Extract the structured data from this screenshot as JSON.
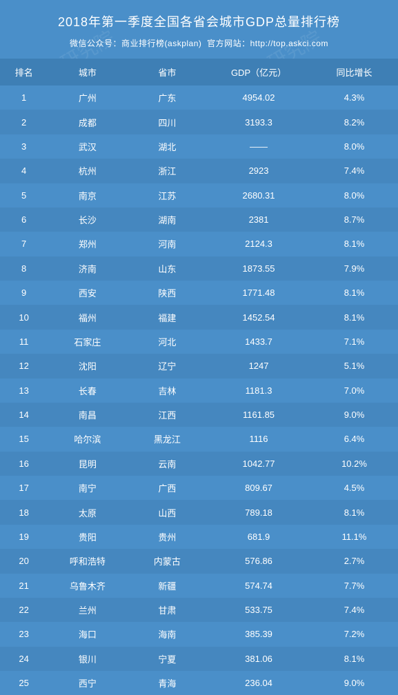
{
  "title": "2018年第一季度全国各省会城市GDP总量排行榜",
  "subtitle_prefix": "微信公众号：",
  "subtitle_account": "商业排行榜(askplan)",
  "subtitle_site_label": "官方网站：",
  "subtitle_site_url": "http://top.askci.com",
  "watermark_text": "中商产业研究院",
  "colors": {
    "background": "#4a8fc9",
    "row_even": "#4587bf",
    "header_row": "#3e7fb5",
    "text": "#ffffff"
  },
  "columns": [
    "排名",
    "城市",
    "省市",
    "GDP（亿元）",
    "同比增长"
  ],
  "column_widths_pct": [
    12,
    20,
    20,
    26,
    22
  ],
  "font_size_title": 18,
  "font_size_subtitle": 12,
  "font_size_body": 13,
  "rows": [
    {
      "rank": "1",
      "city": "广州",
      "province": "广东",
      "gdp": "4954.02",
      "growth": "4.3%"
    },
    {
      "rank": "2",
      "city": "成都",
      "province": "四川",
      "gdp": "3193.3",
      "growth": "8.2%"
    },
    {
      "rank": "3",
      "city": "武汉",
      "province": "湖北",
      "gdp": "——",
      "growth": "8.0%"
    },
    {
      "rank": "4",
      "city": "杭州",
      "province": "浙江",
      "gdp": "2923",
      "growth": "7.4%"
    },
    {
      "rank": "5",
      "city": "南京",
      "province": "江苏",
      "gdp": "2680.31",
      "growth": "8.0%"
    },
    {
      "rank": "6",
      "city": "长沙",
      "province": "湖南",
      "gdp": "2381",
      "growth": "8.7%"
    },
    {
      "rank": "7",
      "city": "郑州",
      "province": "河南",
      "gdp": "2124.3",
      "growth": "8.1%"
    },
    {
      "rank": "8",
      "city": "济南",
      "province": "山东",
      "gdp": "1873.55",
      "growth": "7.9%"
    },
    {
      "rank": "9",
      "city": "西安",
      "province": "陕西",
      "gdp": "1771.48",
      "growth": "8.1%"
    },
    {
      "rank": "10",
      "city": "福州",
      "province": "福建",
      "gdp": "1452.54",
      "growth": "8.1%"
    },
    {
      "rank": "11",
      "city": "石家庄",
      "province": "河北",
      "gdp": "1433.7",
      "growth": "7.1%"
    },
    {
      "rank": "12",
      "city": "沈阳",
      "province": "辽宁",
      "gdp": "1247",
      "growth": "5.1%"
    },
    {
      "rank": "13",
      "city": "长春",
      "province": "吉林",
      "gdp": "1181.3",
      "growth": "7.0%"
    },
    {
      "rank": "14",
      "city": "南昌",
      "province": "江西",
      "gdp": "1161.85",
      "growth": "9.0%"
    },
    {
      "rank": "15",
      "city": "哈尔滨",
      "province": "黑龙江",
      "gdp": "1116",
      "growth": "6.4%"
    },
    {
      "rank": "16",
      "city": "昆明",
      "province": "云南",
      "gdp": "1042.77",
      "growth": "10.2%"
    },
    {
      "rank": "17",
      "city": "南宁",
      "province": "广西",
      "gdp": "809.67",
      "growth": "4.5%"
    },
    {
      "rank": "18",
      "city": "太原",
      "province": "山西",
      "gdp": "789.18",
      "growth": "8.1%"
    },
    {
      "rank": "19",
      "city": "贵阳",
      "province": "贵州",
      "gdp": "681.9",
      "growth": "11.1%"
    },
    {
      "rank": "20",
      "city": "呼和浩特",
      "province": "内蒙古",
      "gdp": "576.86",
      "growth": "2.7%"
    },
    {
      "rank": "21",
      "city": "乌鲁木齐",
      "province": "新疆",
      "gdp": "574.74",
      "growth": "7.7%"
    },
    {
      "rank": "22",
      "city": "兰州",
      "province": "甘肃",
      "gdp": "533.75",
      "growth": "7.4%"
    },
    {
      "rank": "23",
      "city": "海口",
      "province": "海南",
      "gdp": "385.39",
      "growth": "7.2%"
    },
    {
      "rank": "24",
      "city": "银川",
      "province": "宁夏",
      "gdp": "381.06",
      "growth": "8.1%"
    },
    {
      "rank": "25",
      "city": "西宁",
      "province": "青海",
      "gdp": "236.04",
      "growth": "9.0%"
    }
  ]
}
